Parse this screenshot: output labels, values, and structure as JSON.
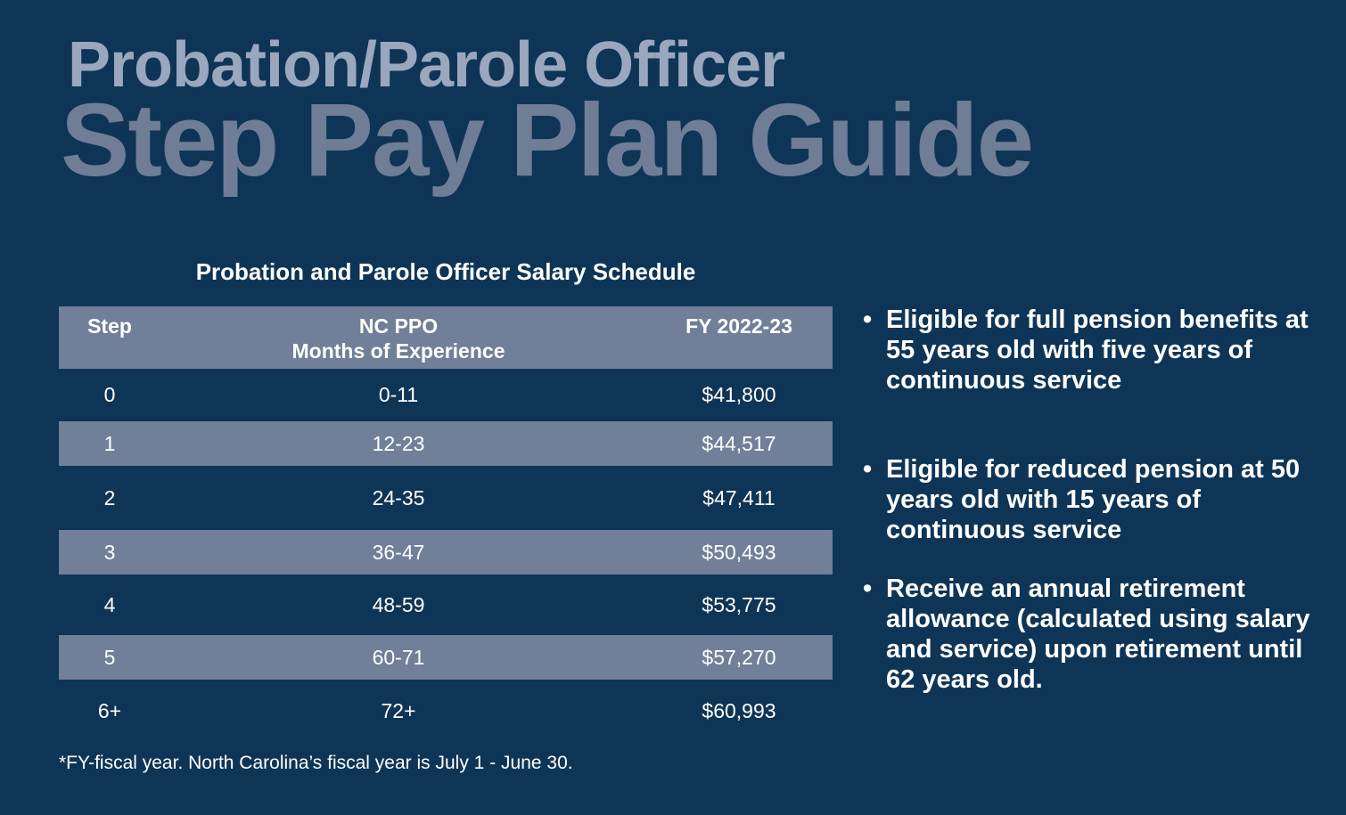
{
  "title_line1": "Probation/Parole Officer",
  "title_line2": "Step Pay Plan Guide",
  "table": {
    "caption": "Probation and Parole Officer Salary Schedule",
    "headers": {
      "step": "Step",
      "months_line1": "NC PPO",
      "months_line2": "Months of Experience",
      "salary": "FY 2022-23"
    },
    "rows": [
      {
        "step": "0",
        "months": "0-11",
        "salary": "$41,800"
      },
      {
        "step": "1",
        "months": "12-23",
        "salary": "$44,517"
      },
      {
        "step": "2",
        "months": "24-35",
        "salary": "$47,411"
      },
      {
        "step": "3",
        "months": "36-47",
        "salary": "$50,493"
      },
      {
        "step": "4",
        "months": "48-59",
        "salary": "$53,775"
      },
      {
        "step": "5",
        "months": "60-71",
        "salary": "$57,270"
      },
      {
        "step": "6+",
        "months": "72+",
        "salary": "$60,993"
      }
    ]
  },
  "footnote": "*FY-fiscal year. North Carolina’s fiscal year is July 1 - June 30.",
  "bullets": [
    "Eligible for full pension benefits at 55 years old with five years of continuous service",
    "Eligible for reduced pension at 50 years old with 15 years of continuous service",
    "Receive an annual retirement allowance (calculated using salary and service) upon retirement until 62 years old."
  ],
  "colors": {
    "background": "#0e3556",
    "stripe": "#717f98",
    "title1": "#9ba7be",
    "title2": "#6f7d96"
  }
}
